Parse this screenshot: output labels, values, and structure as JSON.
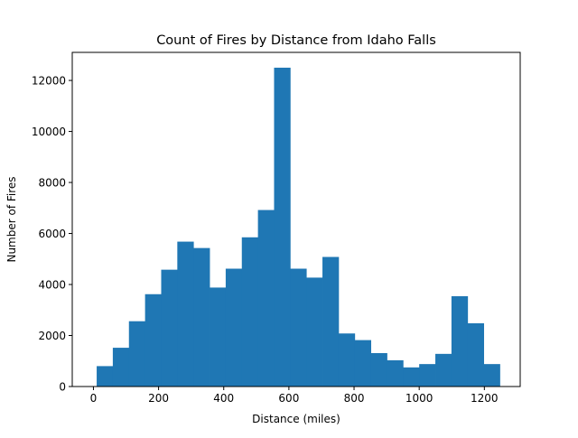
{
  "chart_data": {
    "type": "bar",
    "title": "Count of Fires by Distance from Idaho Falls",
    "xlabel": "Distance (miles)",
    "ylabel": "Number of Fires",
    "xlim": [
      -65,
      1310
    ],
    "ylim": [
      0,
      13100
    ],
    "xticks": [
      0,
      200,
      400,
      600,
      800,
      1000,
      1200
    ],
    "yticks": [
      0,
      2000,
      4000,
      6000,
      8000,
      10000,
      12000
    ],
    "bin_edges": [
      10,
      59.5,
      109,
      158.5,
      208,
      257.5,
      307,
      356.5,
      406,
      455.5,
      505,
      554.5,
      604,
      653.5,
      703,
      752.5,
      802,
      851.5,
      901,
      950.5,
      1000,
      1049.5,
      1099,
      1148.5,
      1198,
      1247.5
    ],
    "values": [
      800,
      1520,
      2560,
      3620,
      4580,
      5680,
      5430,
      3880,
      4620,
      5850,
      6920,
      12500,
      4620,
      4270,
      5080,
      2080,
      1820,
      1310,
      1030,
      750,
      880,
      1280,
      3540,
      2480,
      880
    ],
    "bar_color": "#1f77b4",
    "grid": false
  }
}
